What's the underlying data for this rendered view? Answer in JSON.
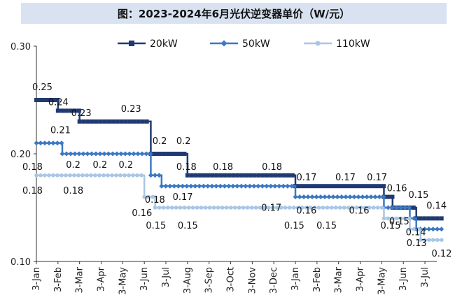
{
  "title": "图：2023-2024年6月光伏逆变器单价（W/元）",
  "chart_data": {
    "type": "line",
    "line_style": "step",
    "ylim": [
      0.1,
      0.3
    ],
    "yticks": [
      "0.10",
      "0.20",
      "0.30"
    ],
    "x_tick_labels": [
      "3-Jan",
      "3-Feb",
      "3-Mar",
      "3-Apr",
      "3-May",
      "3-Jun",
      "3-Jul",
      "3-Aug",
      "3-Sep",
      "3-Oct",
      "3-Nov",
      "3-Dec",
      "3-Jan",
      "3-Feb",
      "3-Mar",
      "3-Apr",
      "3-May",
      "3-Jun",
      "3-Jul"
    ],
    "legend_position": "top",
    "series": [
      {
        "name": "20kW",
        "color": "#1f3a73",
        "marker": "square",
        "points": [
          [
            0,
            0.25
          ],
          [
            1,
            0.24
          ],
          [
            2,
            0.23
          ],
          [
            5.3,
            0.2
          ],
          [
            7,
            0.18
          ],
          [
            12,
            0.17
          ],
          [
            16.1,
            0.16
          ],
          [
            16.5,
            0.15
          ],
          [
            17.6,
            0.14
          ],
          [
            18.8,
            0.14
          ]
        ]
      },
      {
        "name": "50kW",
        "color": "#3a78c3",
        "marker": "diamond",
        "points": [
          [
            0,
            0.21
          ],
          [
            1.2,
            0.2
          ],
          [
            5.3,
            0.18
          ],
          [
            5.8,
            0.17
          ],
          [
            12,
            0.16
          ],
          [
            16.1,
            0.15
          ],
          [
            17.3,
            0.14
          ],
          [
            17.6,
            0.13
          ],
          [
            18.8,
            0.13
          ]
        ]
      },
      {
        "name": "110kW",
        "color": "#a9c6e6",
        "marker": "circle",
        "points": [
          [
            0,
            0.18
          ],
          [
            5.0,
            0.16
          ],
          [
            5.5,
            0.15
          ],
          [
            16.1,
            0.14
          ],
          [
            17.3,
            0.13
          ],
          [
            17.8,
            0.12
          ],
          [
            18.8,
            0.12
          ]
        ]
      }
    ],
    "data_labels": [
      {
        "text": "0.25",
        "x": 0,
        "y": 0.25,
        "dx": -6,
        "dy": -14
      },
      {
        "text": "0.24",
        "x": 1,
        "y": 0.24,
        "dx": -14,
        "dy": -8
      },
      {
        "text": "0.23",
        "x": 2,
        "y": 0.23,
        "dx": -12,
        "dy": -8
      },
      {
        "text": "0.23",
        "x": 4.5,
        "y": 0.23,
        "dx": -18,
        "dy": -14
      },
      {
        "text": "0.2",
        "x": 5.7,
        "y": 0.2,
        "dx": -10,
        "dy": -14
      },
      {
        "text": "0.2",
        "x": 7,
        "y": 0.2,
        "dx": -16,
        "dy": -14
      },
      {
        "text": "0.18",
        "x": 7,
        "y": 0.18,
        "dx": -16,
        "dy": -8
      },
      {
        "text": "0.18",
        "x": 8.5,
        "y": 0.18,
        "dx": -10,
        "dy": -8
      },
      {
        "text": "0.18",
        "x": 10.9,
        "y": 0.18,
        "dx": -14,
        "dy": -8
      },
      {
        "text": "0.17",
        "x": 12.5,
        "y": 0.17,
        "dx": -14,
        "dy": -8
      },
      {
        "text": "0.17",
        "x": 14.3,
        "y": 0.17,
        "dx": -14,
        "dy": -8
      },
      {
        "text": "0.17",
        "x": 15.7,
        "y": 0.17,
        "dx": -12,
        "dy": -8
      },
      {
        "text": "0.16",
        "x": 16.3,
        "y": 0.16,
        "dx": -2,
        "dy": -8
      },
      {
        "text": "0.15",
        "x": 17.3,
        "y": 0.15,
        "dx": -2,
        "dy": -14
      },
      {
        "text": "0.14",
        "x": 18.2,
        "y": 0.14,
        "dx": -4,
        "dy": -14
      },
      {
        "text": "0.21",
        "x": 0,
        "y": 0.21,
        "dx": 20,
        "dy": -14
      },
      {
        "text": "0.2",
        "x": 1.5,
        "y": 0.2,
        "dx": -4,
        "dy": 20
      },
      {
        "text": "0.2",
        "x": 3,
        "y": 0.2,
        "dx": -12,
        "dy": 20
      },
      {
        "text": "0.2",
        "x": 4.2,
        "y": 0.2,
        "dx": -12,
        "dy": 20
      },
      {
        "text": "0.18",
        "x": 5.8,
        "y": 0.17,
        "dx": -24,
        "dy": 24
      },
      {
        "text": "0.17",
        "x": 6.7,
        "y": 0.17,
        "dx": -12,
        "dy": 20
      },
      {
        "text": "0.17",
        "x": 11,
        "y": 0.16,
        "dx": -18,
        "dy": 20
      },
      {
        "text": "0.16",
        "x": 12.3,
        "y": 0.16,
        "dx": -8,
        "dy": 24
      },
      {
        "text": "0.16",
        "x": 15,
        "y": 0.16,
        "dx": -16,
        "dy": 24
      },
      {
        "text": "0.15",
        "x": 16.6,
        "y": 0.15,
        "dx": -8,
        "dy": 24
      },
      {
        "text": "0.14",
        "x": 17.5,
        "y": 0.14,
        "dx": -12,
        "dy": 24
      },
      {
        "text": "0.13",
        "x": 17.6,
        "y": 0.13,
        "dx": -14,
        "dy": 24
      },
      {
        "text": "0.18",
        "x": 0,
        "y": 0.18,
        "dx": -20,
        "dy": -8
      },
      {
        "text": "0.18",
        "x": 0,
        "y": 0.18,
        "dx": -20,
        "dy": 26
      },
      {
        "text": "0.18",
        "x": 1.5,
        "y": 0.18,
        "dx": -8,
        "dy": 26
      },
      {
        "text": "0.16",
        "x": 5.2,
        "y": 0.15,
        "dx": -24,
        "dy": 12
      },
      {
        "text": "0.15",
        "x": 5.2,
        "y": 0.15,
        "dx": -4,
        "dy": 30
      },
      {
        "text": "0.15",
        "x": 7,
        "y": 0.15,
        "dx": -14,
        "dy": 30
      },
      {
        "text": "0.15",
        "x": 11.8,
        "y": 0.15,
        "dx": -10,
        "dy": 30
      },
      {
        "text": "0.15",
        "x": 13.3,
        "y": 0.15,
        "dx": -10,
        "dy": 30
      },
      {
        "text": "0.15",
        "x": 16.2,
        "y": 0.15,
        "dx": -8,
        "dy": 30
      },
      {
        "text": "0.12",
        "x": 18.5,
        "y": 0.12,
        "dx": -6,
        "dy": 24
      }
    ]
  }
}
